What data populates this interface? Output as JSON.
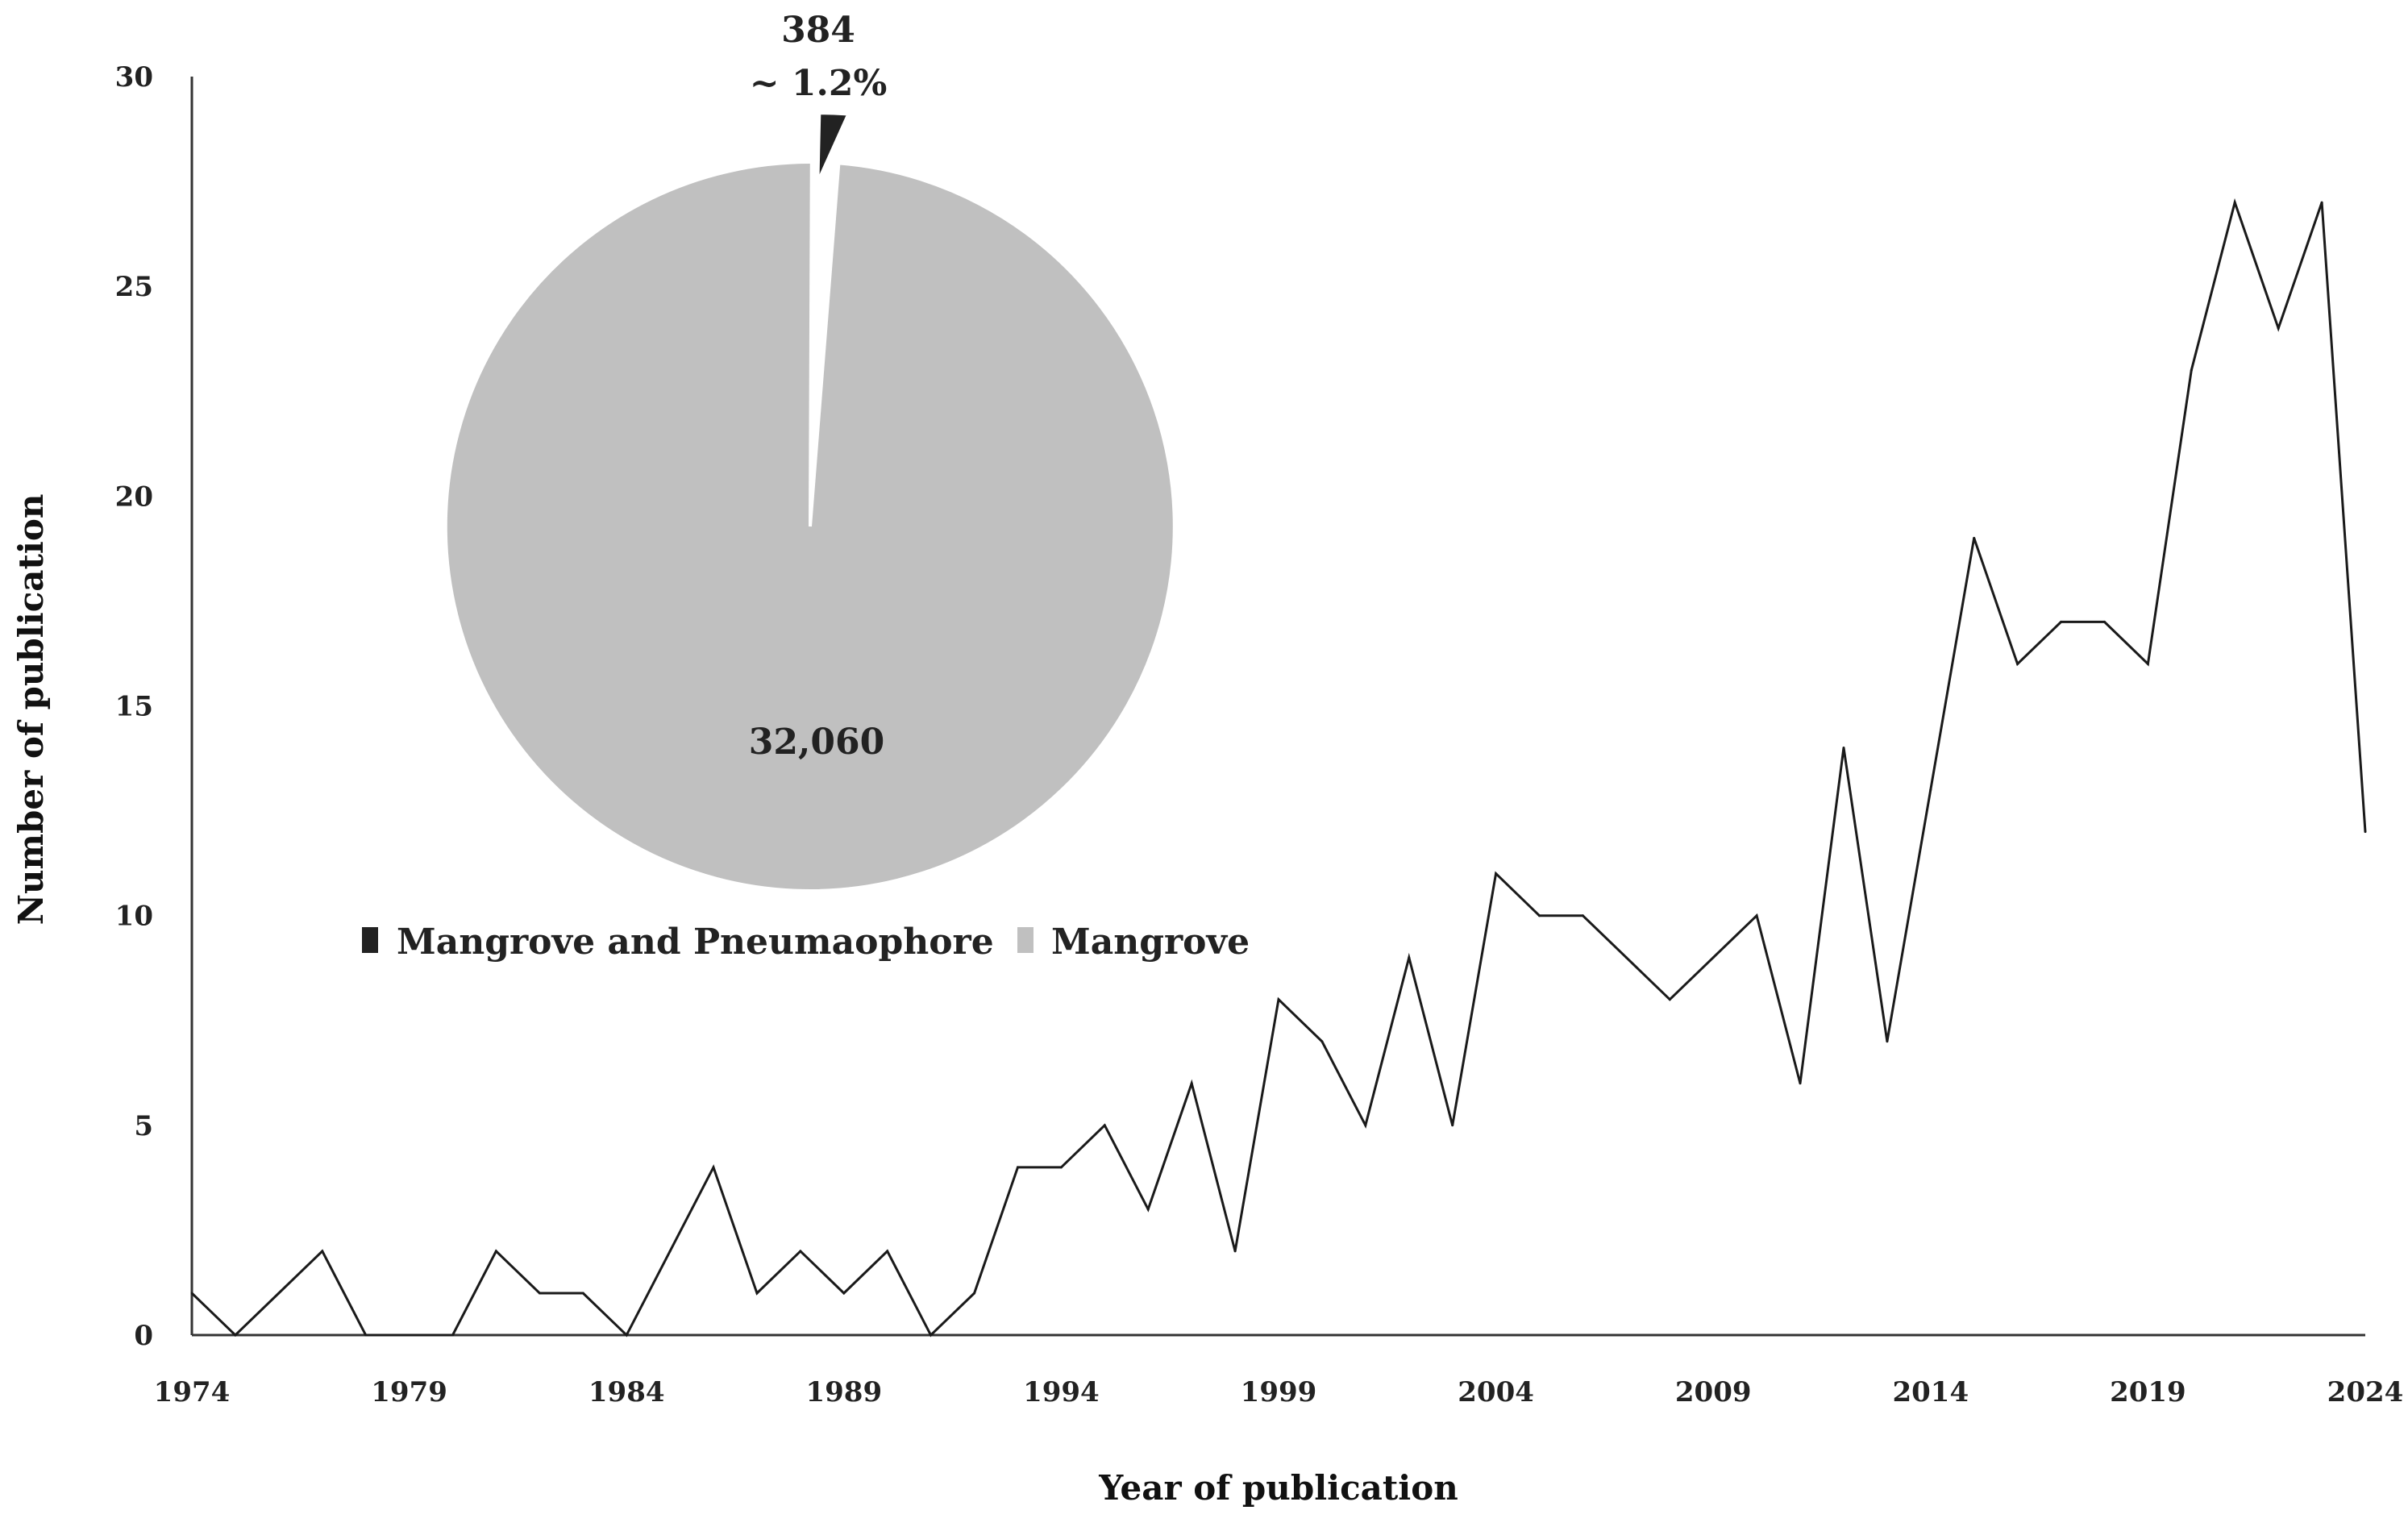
{
  "chart_data": [
    {
      "type": "line",
      "xlabel": "Year of publication",
      "ylabel": "Number of publication",
      "xlim": [
        1974,
        2024
      ],
      "ylim": [
        0,
        30
      ],
      "xticks": [
        "1974",
        "1979",
        "1984",
        "1989",
        "1994",
        "1999",
        "2004",
        "2009",
        "2014",
        "2019",
        "2024"
      ],
      "yticks": [
        "0",
        "5",
        "10",
        "15",
        "20",
        "25",
        "30"
      ],
      "grid": false,
      "series": [
        {
          "name": "Mangrove and Pneumaophore publications",
          "x": [
            1974,
            1975,
            1976,
            1977,
            1978,
            1979,
            1980,
            1981,
            1982,
            1983,
            1984,
            1985,
            1986,
            1987,
            1988,
            1989,
            1990,
            1991,
            1992,
            1993,
            1994,
            1995,
            1996,
            1997,
            1998,
            1999,
            2000,
            2001,
            2002,
            2003,
            2004,
            2005,
            2006,
            2007,
            2008,
            2009,
            2010,
            2011,
            2012,
            2013,
            2014,
            2015,
            2016,
            2017,
            2018,
            2019,
            2020,
            2021,
            2022,
            2023,
            2024
          ],
          "values": [
            1,
            0,
            1,
            2,
            0,
            0,
            0,
            2,
            1,
            1,
            0,
            2,
            4,
            1,
            2,
            1,
            2,
            0,
            1,
            4,
            4,
            5,
            3,
            6,
            2,
            8,
            7,
            5,
            9,
            5,
            11,
            10,
            10,
            9,
            8,
            9,
            10,
            6,
            14,
            7,
            13,
            19,
            16,
            17,
            17,
            16,
            23,
            27,
            24,
            27,
            12
          ]
        }
      ]
    },
    {
      "type": "pie",
      "slices": [
        {
          "label": "Mangrove and Pneumaophore",
          "value": 384,
          "count_label": "384",
          "percent_label": "~ 1.2%",
          "color": "#222222"
        },
        {
          "label": "Mangrove",
          "value": 32060,
          "count_label": "32,060",
          "color": "#c0c0c0"
        }
      ],
      "legend": "bottom",
      "legend_entries": [
        "Mangrove and Pneumaophore",
        "Mangrove"
      ]
    }
  ]
}
